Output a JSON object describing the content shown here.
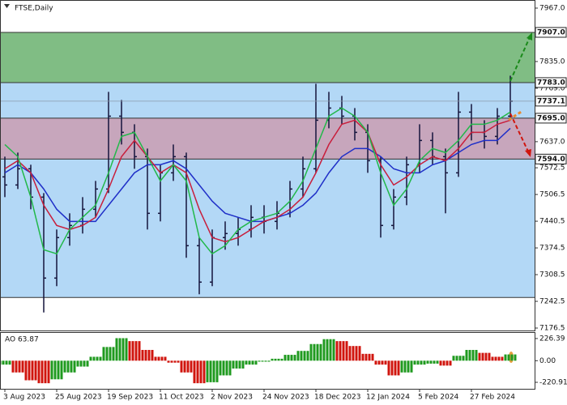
{
  "chart_data": [
    {
      "type": "ohlc",
      "title": "FTSE,Daily",
      "categories": [
        "3 Aug 2023",
        null,
        null,
        null,
        "25 Aug 2023",
        null,
        null,
        null,
        "19 Sep 2023",
        null,
        null,
        null,
        "11 Oct 2023",
        null,
        null,
        null,
        "2 Nov 2023",
        null,
        null,
        null,
        "24 Nov 2023",
        null,
        null,
        null,
        "18 Dec 2023",
        null,
        null,
        null,
        "12 Jan 2024",
        null,
        null,
        null,
        "5 Feb 2024",
        null,
        null,
        null,
        "27 Feb 2024",
        null,
        null,
        null
      ],
      "open": [
        7550,
        7530,
        7570,
        7500,
        7300,
        7400,
        7430,
        7470,
        7520,
        7700,
        7660,
        7600,
        7460,
        7560,
        7600,
        7380,
        7290,
        7400,
        7410,
        7420,
        7450,
        7440,
        7460,
        7520,
        7570,
        7690,
        7720,
        7700,
        7660,
        7590,
        7430,
        7500,
        7580,
        7640,
        7600,
        7560,
        7710,
        7660,
        7650,
        7700
      ],
      "high": [
        7600,
        7610,
        7580,
        7510,
        7420,
        7460,
        7500,
        7540,
        7760,
        7740,
        7680,
        7620,
        7580,
        7630,
        7610,
        7400,
        7420,
        7440,
        7450,
        7480,
        7480,
        7490,
        7540,
        7600,
        7780,
        7760,
        7750,
        7720,
        7680,
        7600,
        7520,
        7600,
        7680,
        7660,
        7620,
        7760,
        7730,
        7690,
        7720,
        7800
      ],
      "low": [
        7500,
        7520,
        7470,
        7215,
        7280,
        7380,
        7410,
        7450,
        7510,
        7630,
        7570,
        7420,
        7440,
        7540,
        7350,
        7260,
        7280,
        7370,
        7380,
        7400,
        7410,
        7420,
        7450,
        7500,
        7560,
        7670,
        7680,
        7640,
        7560,
        7400,
        7420,
        7480,
        7560,
        7580,
        7460,
        7550,
        7640,
        7620,
        7630,
        7690
      ],
      "close": [
        7530,
        7570,
        7500,
        7300,
        7400,
        7430,
        7470,
        7520,
        7700,
        7660,
        7600,
        7460,
        7560,
        7600,
        7380,
        7290,
        7400,
        7410,
        7420,
        7450,
        7440,
        7460,
        7520,
        7570,
        7690,
        7720,
        7700,
        7660,
        7590,
        7430,
        7500,
        7580,
        7640,
        7600,
        7560,
        7710,
        7660,
        7650,
        7700,
        7737.1
      ],
      "bar_color": "#14143c",
      "lines": [
        {
          "color": "#1f2fc8",
          "values": [
            7560,
            7580,
            7560,
            7520,
            7470,
            7440,
            7440,
            7440,
            7480,
            7520,
            7560,
            7580,
            7580,
            7590,
            7570,
            7530,
            7490,
            7460,
            7450,
            7440,
            7440,
            7450,
            7460,
            7480,
            7510,
            7560,
            7600,
            7620,
            7620,
            7600,
            7570,
            7560,
            7560,
            7580,
            7590,
            7610,
            7630,
            7640,
            7640,
            7670
          ]
        },
        {
          "color": "#c81e3c",
          "values": [
            7570,
            7590,
            7560,
            7480,
            7430,
            7420,
            7430,
            7450,
            7520,
            7600,
            7640,
            7600,
            7560,
            7580,
            7560,
            7470,
            7400,
            7390,
            7400,
            7420,
            7440,
            7450,
            7470,
            7500,
            7560,
            7630,
            7680,
            7690,
            7660,
            7580,
            7530,
            7550,
            7580,
            7600,
            7590,
            7620,
            7660,
            7660,
            7680,
            7690
          ]
        },
        {
          "color": "#22b84a",
          "values": [
            7630,
            7600,
            7500,
            7370,
            7360,
            7420,
            7450,
            7480,
            7560,
            7650,
            7660,
            7600,
            7540,
            7580,
            7540,
            7400,
            7360,
            7380,
            7420,
            7440,
            7450,
            7460,
            7490,
            7540,
            7620,
            7700,
            7720,
            7700,
            7660,
            7560,
            7480,
            7520,
            7590,
            7620,
            7610,
            7640,
            7680,
            7680,
            7690,
            7710
          ]
        }
      ],
      "zones": [
        {
          "range": [
            7252,
            7783
          ],
          "color": "#b3d8f6"
        },
        {
          "range": [
            7783,
            7907
          ],
          "color": "#80bd84"
        },
        {
          "range": [
            7594,
            7695
          ],
          "color": "#c9a1b6"
        }
      ],
      "levels": [
        {
          "value": 7907,
          "label": "7907.0"
        },
        {
          "value": 7783,
          "label": "7783.0"
        },
        {
          "value": 7737.1,
          "label": "7737.1"
        },
        {
          "value": 7695,
          "label": "7695.0"
        },
        {
          "value": 7594,
          "label": "7594.0"
        }
      ],
      "ylim": [
        7170.5,
        7987
      ],
      "yticks": [
        {
          "value": 7967,
          "label": "7967.0"
        },
        {
          "value": 7835,
          "label": "7835.0"
        },
        {
          "value": 7769,
          "label": "7769.0"
        },
        {
          "value": 7637,
          "label": "7637.0"
        },
        7572.5,
        7506.5,
        7440.5,
        7374.5,
        7308.5,
        7242.5,
        7176.5
      ]
    },
    {
      "type": "ao",
      "title": "AO 63.87",
      "values": [
        -40,
        -120,
        -200,
        -230,
        -190,
        -120,
        -60,
        40,
        140,
        230,
        200,
        110,
        40,
        -20,
        -120,
        -230,
        -220,
        -150,
        -80,
        -40,
        -10,
        20,
        60,
        100,
        170,
        220,
        200,
        150,
        70,
        -40,
        -150,
        -120,
        -40,
        -30,
        -50,
        50,
        110,
        80,
        40,
        63.87
      ],
      "up_color": "#1f9a1f",
      "down_color": "#d0150e",
      "ylim": [
        -287,
        292
      ],
      "yticks": [
        226.39,
        {
          "value": 0,
          "label": "0.00"
        },
        -220.91
      ]
    }
  ]
}
